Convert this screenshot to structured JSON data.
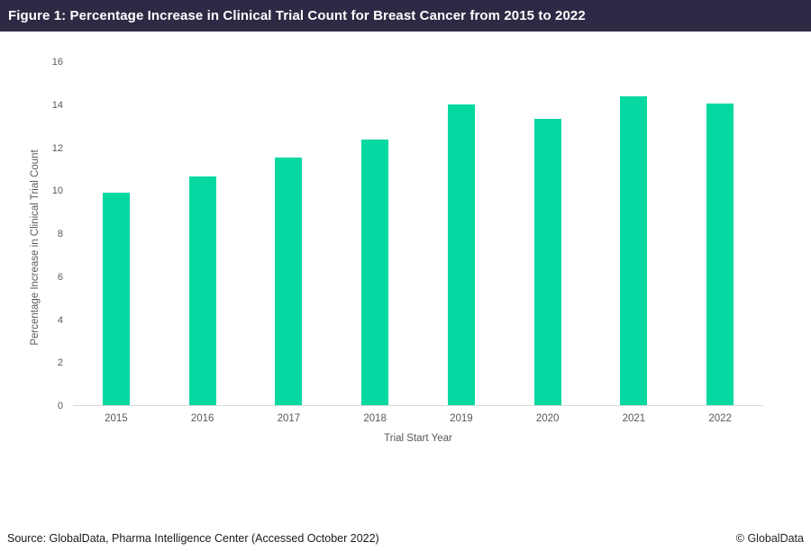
{
  "header": {
    "title": "Figure 1: Percentage Increase in Clinical Trial Count for Breast Cancer from 2015 to 2022"
  },
  "chart_data": {
    "type": "bar",
    "title": "Figure 1: Percentage Increase in Clinical Trial Count for Breast Cancer from 2015 to 2022",
    "categories": [
      "2015",
      "2016",
      "2017",
      "2018",
      "2019",
      "2020",
      "2021",
      "2022"
    ],
    "values": [
      9.9,
      10.65,
      11.5,
      12.35,
      14.0,
      13.3,
      14.35,
      14.05
    ],
    "xlabel": "Trial Start Year",
    "ylabel": "Percentage Increase in Clinical Trial Count",
    "ylim": [
      0,
      16
    ],
    "yticks": [
      0,
      2,
      4,
      6,
      8,
      10,
      12,
      14,
      16
    ],
    "grid": false,
    "legend_position": "none",
    "bar_color": "#06d8a2"
  },
  "colors": {
    "header_bg": "#2e2a45",
    "header_text": "#ffffff",
    "bar": "#06d8a2",
    "axis_text": "#595959",
    "baseline": "#d9d9d9"
  },
  "footer": {
    "source": "Source: GlobalData, Pharma Intelligence Center (Accessed October 2022)",
    "copyright": "© GlobalData"
  }
}
